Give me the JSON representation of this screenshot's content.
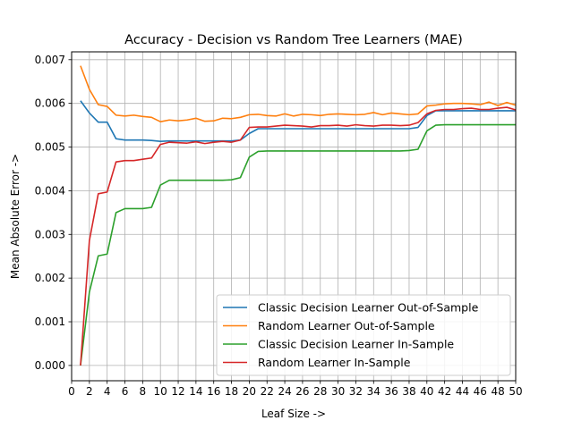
{
  "chart_data": {
    "type": "line",
    "title": "Accuracy - Decision vs Random Tree Learners (MAE)",
    "xlabel": "Leaf Size ->",
    "ylabel": "Mean Absolute Error ->",
    "xlim": [
      0,
      50
    ],
    "ylim": [
      -0.00035,
      0.00718
    ],
    "xticks": [
      0,
      2,
      4,
      6,
      8,
      10,
      12,
      14,
      16,
      18,
      20,
      22,
      24,
      26,
      28,
      30,
      32,
      34,
      36,
      38,
      40,
      42,
      44,
      46,
      48,
      50
    ],
    "yticks": [
      0.0,
      0.001,
      0.002,
      0.003,
      0.004,
      0.005,
      0.006,
      0.007
    ],
    "ytick_labels": [
      "0.000",
      "0.001",
      "0.002",
      "0.003",
      "0.004",
      "0.005",
      "0.006",
      "0.007"
    ],
    "grid": true,
    "legend_position": "lower-right",
    "x": [
      1,
      2,
      3,
      4,
      5,
      6,
      7,
      8,
      9,
      10,
      11,
      12,
      13,
      14,
      15,
      16,
      17,
      18,
      19,
      20,
      21,
      22,
      23,
      24,
      25,
      26,
      27,
      28,
      29,
      30,
      31,
      32,
      33,
      34,
      35,
      36,
      37,
      38,
      39,
      40,
      41,
      42,
      43,
      44,
      45,
      46,
      47,
      48,
      49,
      50
    ],
    "series": [
      {
        "name": "Classic Decision Learner Out-of-Sample",
        "color": "#1f77b4",
        "values": [
          0.00606,
          0.00578,
          0.00557,
          0.00557,
          0.00519,
          0.00516,
          0.00516,
          0.00516,
          0.00515,
          0.00513,
          0.00514,
          0.00514,
          0.00514,
          0.00514,
          0.00514,
          0.00514,
          0.00514,
          0.00514,
          0.00516,
          0.00531,
          0.00542,
          0.00542,
          0.00542,
          0.00542,
          0.00542,
          0.00542,
          0.00542,
          0.00542,
          0.00542,
          0.00542,
          0.00542,
          0.00542,
          0.00542,
          0.00542,
          0.00542,
          0.00542,
          0.00542,
          0.00542,
          0.00545,
          0.00572,
          0.00583,
          0.00583,
          0.00583,
          0.00583,
          0.00583,
          0.00583,
          0.00583,
          0.00583,
          0.00583,
          0.00583
        ]
      },
      {
        "name": "Random Learner Out-of-Sample",
        "color": "#ff7f0e",
        "values": [
          0.00686,
          0.00632,
          0.00597,
          0.00593,
          0.00573,
          0.00571,
          0.00573,
          0.0057,
          0.00568,
          0.00558,
          0.00562,
          0.0056,
          0.00562,
          0.00566,
          0.00559,
          0.0056,
          0.00566,
          0.00565,
          0.00568,
          0.00574,
          0.00575,
          0.00572,
          0.00571,
          0.00576,
          0.00571,
          0.00575,
          0.00574,
          0.00572,
          0.00575,
          0.00576,
          0.00575,
          0.00574,
          0.00575,
          0.00579,
          0.00574,
          0.00578,
          0.00576,
          0.00574,
          0.00576,
          0.00594,
          0.00596,
          0.00599,
          0.006,
          0.006,
          0.00599,
          0.00597,
          0.00603,
          0.00595,
          0.00602,
          0.00596
        ]
      },
      {
        "name": "Classic Decision Learner In-Sample",
        "color": "#2ca02c",
        "values": [
          0.0,
          0.00168,
          0.00251,
          0.00255,
          0.0035,
          0.00359,
          0.00359,
          0.00359,
          0.00362,
          0.00413,
          0.00424,
          0.00424,
          0.00424,
          0.00424,
          0.00424,
          0.00424,
          0.00424,
          0.00425,
          0.0043,
          0.00477,
          0.0049,
          0.00491,
          0.00491,
          0.00491,
          0.00491,
          0.00491,
          0.00491,
          0.00491,
          0.00491,
          0.00491,
          0.00491,
          0.00491,
          0.00491,
          0.00491,
          0.00491,
          0.00491,
          0.00491,
          0.00492,
          0.00495,
          0.00537,
          0.0055,
          0.00551,
          0.00551,
          0.00551,
          0.00551,
          0.00551,
          0.00551,
          0.00551,
          0.00551,
          0.00551
        ]
      },
      {
        "name": "Random Learner In-Sample",
        "color": "#d62728",
        "values": [
          0.0,
          0.00286,
          0.00393,
          0.00397,
          0.00466,
          0.00469,
          0.00469,
          0.00472,
          0.00475,
          0.00506,
          0.00511,
          0.0051,
          0.00509,
          0.00512,
          0.00508,
          0.00511,
          0.00513,
          0.00511,
          0.00516,
          0.00545,
          0.00546,
          0.00546,
          0.00548,
          0.0055,
          0.00549,
          0.00548,
          0.00546,
          0.00549,
          0.00549,
          0.0055,
          0.00548,
          0.00551,
          0.00549,
          0.00548,
          0.0055,
          0.0055,
          0.00549,
          0.0055,
          0.00556,
          0.00576,
          0.00584,
          0.00586,
          0.00586,
          0.00588,
          0.00589,
          0.00586,
          0.00586,
          0.00589,
          0.00591,
          0.00585
        ]
      }
    ]
  }
}
